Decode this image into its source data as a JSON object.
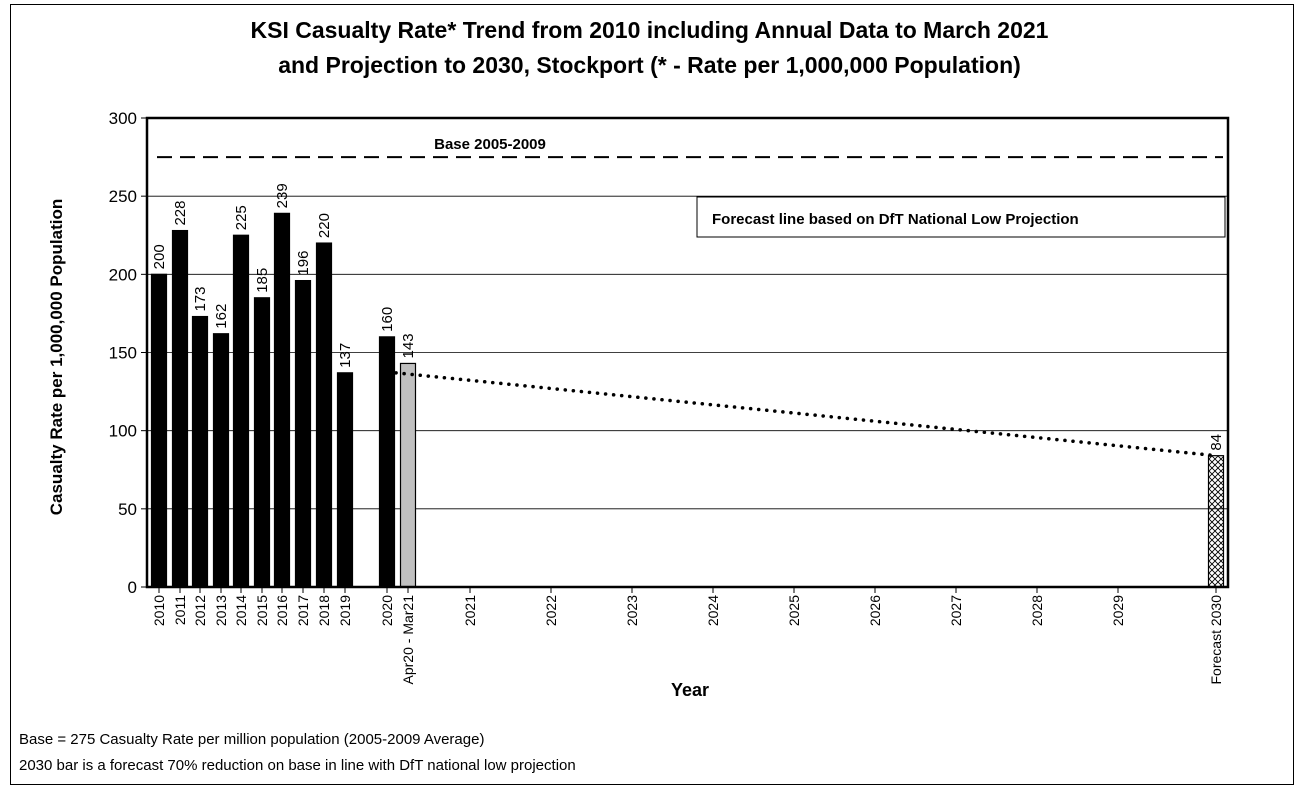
{
  "chart_data": {
    "type": "bar",
    "title_line1": "KSI Casualty Rate* Trend from 2010 including Annual Data to March 2021",
    "title_line2": "and Projection to 2030, Stockport (* - Rate per 1,000,000 Population)",
    "xlabel": "Year",
    "ylabel": "Casualty Rate per 1,000,000 Population",
    "ylim": [
      0,
      300
    ],
    "yticks": [
      "0",
      "50",
      "100",
      "150",
      "200",
      "250",
      "300"
    ],
    "grid": true,
    "categories": [
      "2010",
      "2011",
      "2012",
      "2013",
      "2014",
      "2015",
      "2016",
      "2017",
      "2018",
      "2019",
      "2020",
      "Apr20 - Mar21",
      "2021",
      "2022",
      "2023",
      "2024",
      "2025",
      "2026",
      "2027",
      "2028",
      "2029",
      "Forecast 2030"
    ],
    "series": [
      {
        "values": [
          200,
          228,
          173,
          162,
          225,
          185,
          239,
          196,
          220,
          137,
          160,
          143,
          null,
          null,
          null,
          null,
          null,
          null,
          null,
          null,
          null,
          84
        ],
        "labels": [
          "200",
          "228",
          "173",
          "162",
          "225",
          "185",
          "239",
          "196",
          "220",
          "137",
          "160",
          "143",
          "",
          "",
          "",
          "",
          "",
          "",
          "",
          "",
          "",
          "84"
        ],
        "bar_styles": [
          "annual",
          "annual",
          "annual",
          "annual",
          "annual",
          "annual",
          "annual",
          "annual",
          "annual",
          "annual",
          "annual",
          "rolling",
          "none",
          "none",
          "none",
          "none",
          "none",
          "none",
          "none",
          "none",
          "none",
          "forecast"
        ]
      }
    ],
    "base_line": {
      "value": 275,
      "label": "Base 2005-2009",
      "style": "dashed"
    },
    "forecast_line": {
      "from_value": 137,
      "to_value": 84,
      "from_category": "Apr20 - Mar21",
      "to_category": "Forecast 2030",
      "style": "dotted"
    },
    "legend_box": "Forecast line based on DfT National Low Projection",
    "colors": {
      "annual": "#000000",
      "rolling": "#c0c0c0",
      "forecast_hatch": "#000000",
      "grid": "#000000"
    }
  },
  "footnotes": {
    "line1": "Base = 275 Casualty Rate per million population (2005-2009 Average)",
    "line2": "2030 bar is a forecast 70% reduction on base in line with DfT national low projection"
  }
}
